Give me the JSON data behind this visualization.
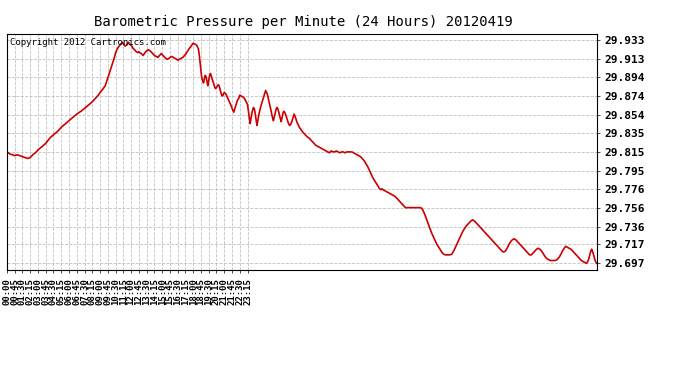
{
  "title": "Barometric Pressure per Minute (24 Hours) 20120419",
  "copyright": "Copyright 2012 Cartronics.com",
  "line_color": "#cc0000",
  "background_color": "#ffffff",
  "grid_color": "#c0c0c0",
  "yticks": [
    29.933,
    29.913,
    29.894,
    29.874,
    29.854,
    29.835,
    29.815,
    29.795,
    29.776,
    29.756,
    29.736,
    29.717,
    29.697
  ],
  "ylim": [
    29.69,
    29.94
  ],
  "xtick_labels": [
    "00:00",
    "00:45",
    "01:30",
    "02:15",
    "03:00",
    "03:45",
    "04:30",
    "05:15",
    "06:00",
    "06:45",
    "07:30",
    "08:15",
    "09:00",
    "09:45",
    "10:30",
    "11:15",
    "12:00",
    "12:45",
    "13:30",
    "14:15",
    "15:00",
    "15:45",
    "16:30",
    "17:15",
    "18:00",
    "18:45",
    "19:30",
    "20:15",
    "21:00",
    "21:45",
    "22:30",
    "23:15"
  ],
  "pressure_keypoints": [
    [
      0,
      29.815
    ],
    [
      15,
      29.813
    ],
    [
      30,
      29.812
    ],
    [
      45,
      29.811
    ],
    [
      60,
      29.812
    ],
    [
      75,
      29.811
    ],
    [
      90,
      29.81
    ],
    [
      105,
      29.809
    ],
    [
      120,
      29.808
    ],
    [
      135,
      29.809
    ],
    [
      150,
      29.812
    ],
    [
      165,
      29.814
    ],
    [
      180,
      29.817
    ],
    [
      200,
      29.82
    ],
    [
      225,
      29.824
    ],
    [
      250,
      29.83
    ],
    [
      270,
      29.833
    ],
    [
      290,
      29.836
    ],
    [
      315,
      29.841
    ],
    [
      340,
      29.845
    ],
    [
      360,
      29.848
    ],
    [
      385,
      29.852
    ],
    [
      405,
      29.855
    ],
    [
      430,
      29.858
    ],
    [
      450,
      29.861
    ],
    [
      470,
      29.864
    ],
    [
      495,
      29.868
    ],
    [
      510,
      29.871
    ],
    [
      530,
      29.875
    ],
    [
      540,
      29.878
    ],
    [
      555,
      29.881
    ],
    [
      570,
      29.885
    ],
    [
      585,
      29.893
    ],
    [
      600,
      29.902
    ],
    [
      615,
      29.91
    ],
    [
      625,
      29.916
    ],
    [
      630,
      29.92
    ],
    [
      640,
      29.924
    ],
    [
      650,
      29.927
    ],
    [
      660,
      29.929
    ],
    [
      670,
      29.931
    ],
    [
      675,
      29.929
    ],
    [
      685,
      29.927
    ],
    [
      695,
      29.928
    ],
    [
      700,
      29.93
    ],
    [
      705,
      29.931
    ],
    [
      710,
      29.929
    ],
    [
      720,
      29.928
    ],
    [
      730,
      29.925
    ],
    [
      740,
      29.923
    ],
    [
      750,
      29.921
    ],
    [
      760,
      29.92
    ],
    [
      765,
      29.921
    ],
    [
      770,
      29.92
    ],
    [
      780,
      29.919
    ],
    [
      790,
      29.917
    ],
    [
      800,
      29.92
    ],
    [
      810,
      29.922
    ],
    [
      820,
      29.923
    ],
    [
      830,
      29.922
    ],
    [
      840,
      29.92
    ],
    [
      850,
      29.918
    ],
    [
      855,
      29.917
    ],
    [
      865,
      29.916
    ],
    [
      875,
      29.915
    ],
    [
      885,
      29.917
    ],
    [
      895,
      29.919
    ],
    [
      900,
      29.918
    ],
    [
      910,
      29.916
    ],
    [
      920,
      29.914
    ],
    [
      930,
      29.913
    ],
    [
      940,
      29.914
    ],
    [
      945,
      29.915
    ],
    [
      955,
      29.916
    ],
    [
      965,
      29.915
    ],
    [
      975,
      29.914
    ],
    [
      985,
      29.913
    ],
    [
      990,
      29.912
    ],
    [
      1000,
      29.913
    ],
    [
      1010,
      29.914
    ],
    [
      1020,
      29.915
    ],
    [
      1030,
      29.917
    ],
    [
      1035,
      29.918
    ],
    [
      1045,
      29.921
    ],
    [
      1055,
      29.924
    ],
    [
      1065,
      29.926
    ],
    [
      1075,
      29.929
    ],
    [
      1080,
      29.93
    ],
    [
      1090,
      29.929
    ],
    [
      1100,
      29.928
    ],
    [
      1110,
      29.924
    ],
    [
      1115,
      29.918
    ],
    [
      1120,
      29.91
    ],
    [
      1125,
      29.9
    ],
    [
      1130,
      29.893
    ],
    [
      1135,
      29.89
    ],
    [
      1140,
      29.888
    ],
    [
      1145,
      29.893
    ],
    [
      1150,
      29.896
    ],
    [
      1155,
      29.894
    ],
    [
      1160,
      29.889
    ],
    [
      1165,
      29.885
    ],
    [
      1170,
      29.891
    ],
    [
      1175,
      29.896
    ],
    [
      1180,
      29.898
    ],
    [
      1185,
      29.895
    ],
    [
      1190,
      29.892
    ],
    [
      1195,
      29.889
    ],
    [
      1200,
      29.886
    ],
    [
      1205,
      29.883
    ],
    [
      1210,
      29.882
    ],
    [
      1215,
      29.883
    ],
    [
      1220,
      29.885
    ],
    [
      1225,
      29.886
    ],
    [
      1230,
      29.885
    ],
    [
      1235,
      29.882
    ],
    [
      1240,
      29.878
    ],
    [
      1245,
      29.875
    ],
    [
      1250,
      29.874
    ],
    [
      1255,
      29.876
    ],
    [
      1260,
      29.878
    ],
    [
      1270,
      29.876
    ],
    [
      1280,
      29.872
    ],
    [
      1290,
      29.868
    ],
    [
      1300,
      29.864
    ],
    [
      1305,
      29.861
    ],
    [
      1315,
      29.857
    ],
    [
      1325,
      29.863
    ],
    [
      1335,
      29.869
    ],
    [
      1345,
      29.872
    ],
    [
      1350,
      29.875
    ],
    [
      1360,
      29.874
    ],
    [
      1370,
      29.873
    ],
    [
      1375,
      29.872
    ],
    [
      1385,
      29.869
    ],
    [
      1395,
      29.865
    ],
    [
      1400,
      29.858
    ],
    [
      1405,
      29.851
    ],
    [
      1410,
      29.845
    ],
    [
      1415,
      29.85
    ],
    [
      1420,
      29.856
    ],
    [
      1425,
      29.86
    ],
    [
      1430,
      29.862
    ],
    [
      1435,
      29.86
    ],
    [
      1440,
      29.855
    ],
    [
      1445,
      29.848
    ],
    [
      1450,
      29.843
    ],
    [
      1455,
      29.848
    ],
    [
      1460,
      29.854
    ],
    [
      1465,
      29.858
    ],
    [
      1470,
      29.862
    ],
    [
      1475,
      29.865
    ],
    [
      1480,
      29.868
    ],
    [
      1485,
      29.871
    ],
    [
      1490,
      29.874
    ],
    [
      1495,
      29.877
    ],
    [
      1500,
      29.88
    ],
    [
      1505,
      29.878
    ],
    [
      1510,
      29.876
    ],
    [
      1515,
      29.872
    ],
    [
      1520,
      29.868
    ],
    [
      1525,
      29.864
    ],
    [
      1530,
      29.86
    ],
    [
      1535,
      29.855
    ],
    [
      1540,
      29.851
    ],
    [
      1545,
      29.848
    ],
    [
      1550,
      29.852
    ],
    [
      1555,
      29.856
    ],
    [
      1560,
      29.86
    ],
    [
      1565,
      29.862
    ],
    [
      1570,
      29.861
    ],
    [
      1575,
      29.858
    ],
    [
      1580,
      29.854
    ],
    [
      1585,
      29.85
    ],
    [
      1590,
      29.847
    ],
    [
      1595,
      29.851
    ],
    [
      1600,
      29.856
    ],
    [
      1605,
      29.858
    ],
    [
      1610,
      29.857
    ],
    [
      1615,
      29.855
    ],
    [
      1620,
      29.852
    ],
    [
      1625,
      29.849
    ],
    [
      1630,
      29.846
    ],
    [
      1635,
      29.844
    ],
    [
      1640,
      29.843
    ],
    [
      1645,
      29.844
    ],
    [
      1650,
      29.846
    ],
    [
      1655,
      29.849
    ],
    [
      1660,
      29.852
    ],
    [
      1665,
      29.855
    ],
    [
      1670,
      29.853
    ],
    [
      1675,
      29.85
    ],
    [
      1680,
      29.847
    ],
    [
      1685,
      29.845
    ],
    [
      1690,
      29.843
    ],
    [
      1695,
      29.841
    ],
    [
      1700,
      29.84
    ],
    [
      1710,
      29.837
    ],
    [
      1720,
      29.835
    ],
    [
      1730,
      29.833
    ],
    [
      1740,
      29.831
    ],
    [
      1750,
      29.83
    ],
    [
      1760,
      29.828
    ],
    [
      1770,
      29.826
    ],
    [
      1780,
      29.824
    ],
    [
      1790,
      29.822
    ],
    [
      1800,
      29.821
    ],
    [
      1810,
      29.82
    ],
    [
      1820,
      29.819
    ],
    [
      1830,
      29.818
    ],
    [
      1840,
      29.817
    ],
    [
      1850,
      29.816
    ],
    [
      1860,
      29.815
    ],
    [
      1870,
      29.814
    ],
    [
      1880,
      29.816
    ],
    [
      1890,
      29.815
    ],
    [
      1900,
      29.815
    ],
    [
      1910,
      29.816
    ],
    [
      1920,
      29.815
    ],
    [
      1930,
      29.814
    ],
    [
      1940,
      29.815
    ],
    [
      1950,
      29.815
    ],
    [
      1960,
      29.814
    ],
    [
      1970,
      29.815
    ],
    [
      1980,
      29.815
    ],
    [
      1990,
      29.815
    ],
    [
      2000,
      29.815
    ],
    [
      2010,
      29.814
    ],
    [
      2020,
      29.813
    ],
    [
      2030,
      29.812
    ],
    [
      2040,
      29.811
    ],
    [
      2050,
      29.81
    ],
    [
      2060,
      29.808
    ],
    [
      2070,
      29.806
    ],
    [
      2080,
      29.803
    ],
    [
      2090,
      29.8
    ],
    [
      2100,
      29.796
    ],
    [
      2110,
      29.792
    ],
    [
      2120,
      29.788
    ],
    [
      2130,
      29.785
    ],
    [
      2140,
      29.782
    ],
    [
      2150,
      29.779
    ],
    [
      2160,
      29.776
    ],
    [
      2170,
      29.775
    ],
    [
      2175,
      29.776
    ],
    [
      2180,
      29.775
    ],
    [
      2190,
      29.774
    ],
    [
      2200,
      29.773
    ],
    [
      2210,
      29.772
    ],
    [
      2220,
      29.771
    ],
    [
      2230,
      29.77
    ],
    [
      2240,
      29.769
    ],
    [
      2250,
      29.768
    ],
    [
      2260,
      29.766
    ],
    [
      2270,
      29.764
    ],
    [
      2280,
      29.762
    ],
    [
      2290,
      29.76
    ],
    [
      2300,
      29.758
    ],
    [
      2310,
      29.756
    ],
    [
      2320,
      29.756
    ],
    [
      2330,
      29.756
    ],
    [
      2340,
      29.756
    ],
    [
      2350,
      29.756
    ],
    [
      2360,
      29.756
    ],
    [
      2370,
      29.756
    ],
    [
      2380,
      29.756
    ],
    [
      2390,
      29.756
    ],
    [
      2400,
      29.756
    ],
    [
      2410,
      29.754
    ],
    [
      2420,
      29.75
    ],
    [
      2430,
      29.745
    ],
    [
      2440,
      29.74
    ],
    [
      2450,
      29.735
    ],
    [
      2460,
      29.73
    ],
    [
      2470,
      29.726
    ],
    [
      2480,
      29.722
    ],
    [
      2490,
      29.718
    ],
    [
      2500,
      29.715
    ],
    [
      2510,
      29.712
    ],
    [
      2520,
      29.709
    ],
    [
      2530,
      29.707
    ],
    [
      2540,
      29.706
    ],
    [
      2550,
      29.706
    ],
    [
      2560,
      29.706
    ],
    [
      2570,
      29.706
    ],
    [
      2580,
      29.707
    ],
    [
      2590,
      29.71
    ],
    [
      2600,
      29.714
    ],
    [
      2610,
      29.718
    ],
    [
      2620,
      29.722
    ],
    [
      2630,
      29.726
    ],
    [
      2640,
      29.73
    ],
    [
      2650,
      29.733
    ],
    [
      2660,
      29.736
    ],
    [
      2670,
      29.738
    ],
    [
      2680,
      29.74
    ],
    [
      2690,
      29.742
    ],
    [
      2700,
      29.743
    ],
    [
      2710,
      29.742
    ],
    [
      2720,
      29.74
    ],
    [
      2730,
      29.738
    ],
    [
      2740,
      29.736
    ],
    [
      2750,
      29.734
    ],
    [
      2760,
      29.732
    ],
    [
      2770,
      29.73
    ],
    [
      2780,
      29.728
    ],
    [
      2790,
      29.726
    ],
    [
      2800,
      29.724
    ],
    [
      2810,
      29.722
    ],
    [
      2820,
      29.72
    ],
    [
      2830,
      29.718
    ],
    [
      2840,
      29.716
    ],
    [
      2850,
      29.714
    ],
    [
      2860,
      29.712
    ],
    [
      2870,
      29.71
    ],
    [
      2880,
      29.709
    ],
    [
      2890,
      29.71
    ],
    [
      2900,
      29.713
    ],
    [
      2910,
      29.717
    ],
    [
      2920,
      29.72
    ],
    [
      2930,
      29.722
    ],
    [
      2940,
      29.723
    ],
    [
      2950,
      29.722
    ],
    [
      2960,
      29.72
    ],
    [
      2970,
      29.718
    ],
    [
      2980,
      29.716
    ],
    [
      2990,
      29.714
    ],
    [
      3000,
      29.712
    ],
    [
      3010,
      29.71
    ],
    [
      3020,
      29.708
    ],
    [
      3030,
      29.706
    ],
    [
      3040,
      29.706
    ],
    [
      3050,
      29.708
    ],
    [
      3060,
      29.71
    ],
    [
      3070,
      29.712
    ],
    [
      3080,
      29.713
    ],
    [
      3090,
      29.712
    ],
    [
      3100,
      29.71
    ],
    [
      3110,
      29.707
    ],
    [
      3120,
      29.704
    ],
    [
      3130,
      29.702
    ],
    [
      3140,
      29.701
    ],
    [
      3150,
      29.7
    ],
    [
      3160,
      29.7
    ],
    [
      3170,
      29.7
    ],
    [
      3180,
      29.7
    ],
    [
      3190,
      29.701
    ],
    [
      3200,
      29.703
    ],
    [
      3210,
      29.706
    ],
    [
      3220,
      29.71
    ],
    [
      3230,
      29.713
    ],
    [
      3240,
      29.715
    ],
    [
      3250,
      29.714
    ],
    [
      3260,
      29.713
    ],
    [
      3270,
      29.712
    ],
    [
      3280,
      29.71
    ],
    [
      3290,
      29.708
    ],
    [
      3300,
      29.706
    ],
    [
      3310,
      29.704
    ],
    [
      3320,
      29.702
    ],
    [
      3330,
      29.7
    ],
    [
      3340,
      29.699
    ],
    [
      3350,
      29.698
    ],
    [
      3360,
      29.697
    ],
    [
      3370,
      29.7
    ],
    [
      3375,
      29.703
    ],
    [
      3380,
      29.707
    ],
    [
      3385,
      29.71
    ],
    [
      3390,
      29.712
    ],
    [
      3395,
      29.71
    ],
    [
      3400,
      29.707
    ],
    [
      3405,
      29.703
    ],
    [
      3410,
      29.7
    ],
    [
      3415,
      29.698
    ],
    [
      3420,
      29.697
    ]
  ]
}
